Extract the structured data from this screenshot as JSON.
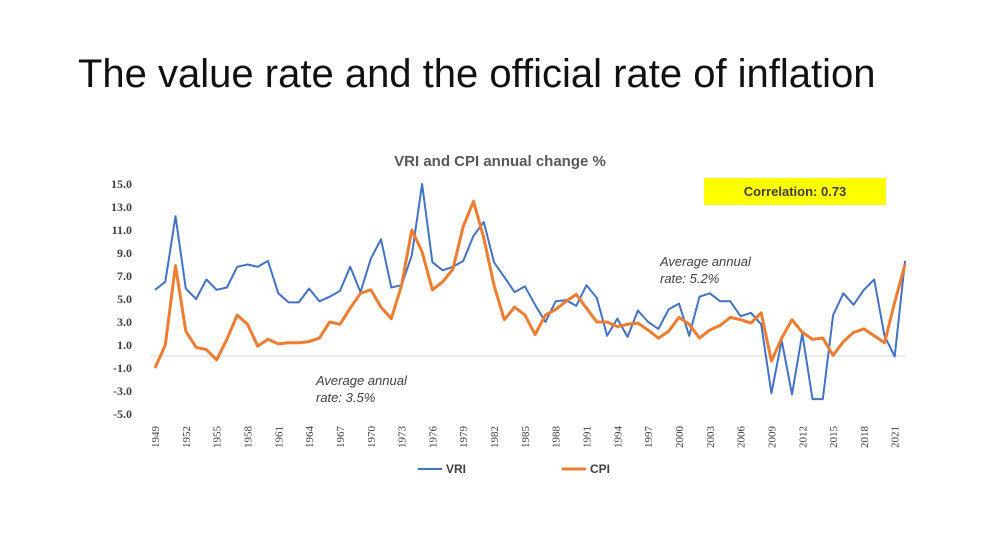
{
  "slide": {
    "title": "The value rate and the official rate of inflation"
  },
  "chart_data": {
    "type": "line",
    "title": "VRI  and CPI annual change %",
    "xlabel": "",
    "ylabel": "",
    "ylim": [
      -5.0,
      15.0
    ],
    "yticks": [
      "15.0",
      "13.0",
      "11.0",
      "9.0",
      "7.0",
      "5.0",
      "3.0",
      "1.0",
      "-1.0",
      "-3.0",
      "-5.0"
    ],
    "xticks": [
      "1949",
      "1952",
      "1955",
      "1958",
      "1961",
      "1964",
      "1967",
      "1970",
      "1973",
      "1976",
      "1979",
      "1982",
      "1985",
      "1988",
      "1991",
      "1994",
      "1997",
      "2000",
      "2003",
      "2006",
      "2009",
      "2012",
      "2015",
      "2018",
      "2021"
    ],
    "x_start": 1949,
    "x_end": 2022,
    "series": [
      {
        "name": "VRI",
        "color": "#4472C4",
        "values": [
          5.8,
          6.5,
          12.2,
          5.9,
          5.0,
          6.7,
          5.8,
          6.0,
          7.8,
          8.0,
          7.8,
          8.3,
          5.5,
          4.7,
          4.7,
          5.9,
          4.8,
          5.2,
          5.7,
          7.8,
          5.6,
          8.5,
          10.2,
          6.0,
          6.2,
          8.8,
          15.0,
          8.2,
          7.5,
          7.8,
          8.3,
          10.5,
          11.7,
          8.2,
          6.9,
          5.6,
          6.1,
          4.5,
          3.0,
          4.8,
          4.9,
          4.4,
          6.2,
          5.1,
          1.8,
          3.3,
          1.7,
          4.0,
          3.0,
          2.4,
          4.1,
          4.6,
          1.8,
          5.2,
          5.5,
          4.8,
          4.8,
          3.5,
          3.8,
          2.8,
          -3.2,
          1.4,
          -3.3,
          2.0,
          -3.7,
          -3.7,
          3.6,
          5.5,
          4.5,
          5.8,
          6.7,
          1.8,
          0.0,
          8.3
        ]
      },
      {
        "name": "CPI",
        "color": "#ED7D31",
        "values": [
          -1.0,
          1.0,
          7.9,
          2.2,
          0.8,
          0.6,
          -0.3,
          1.5,
          3.6,
          2.8,
          0.9,
          1.5,
          1.1,
          1.2,
          1.2,
          1.3,
          1.6,
          3.0,
          2.8,
          4.2,
          5.5,
          5.8,
          4.3,
          3.3,
          6.2,
          11.0,
          9.1,
          5.8,
          6.5,
          7.6,
          11.3,
          13.5,
          10.3,
          6.2,
          3.2,
          4.3,
          3.6,
          1.9,
          3.6,
          4.1,
          4.8,
          5.4,
          4.2,
          3.0,
          3.0,
          2.6,
          2.8,
          2.9,
          2.3,
          1.6,
          2.2,
          3.4,
          2.8,
          1.6,
          2.3,
          2.7,
          3.4,
          3.2,
          2.9,
          3.8,
          -0.4,
          1.6,
          3.2,
          2.1,
          1.5,
          1.6,
          0.1,
          1.3,
          2.1,
          2.4,
          1.8,
          1.2,
          4.7,
          8.0
        ]
      }
    ],
    "annotations": [
      {
        "lines": [
          "Average annual",
          "rate: 3.5%"
        ]
      },
      {
        "lines": [
          "Average annual",
          "rate: 5.2%"
        ]
      }
    ],
    "correlation": {
      "label": "Correlation: 0.73",
      "bg": "#FFFF00"
    },
    "legend": {
      "position": "bottom",
      "entries": [
        "VRI",
        "CPI"
      ]
    }
  }
}
